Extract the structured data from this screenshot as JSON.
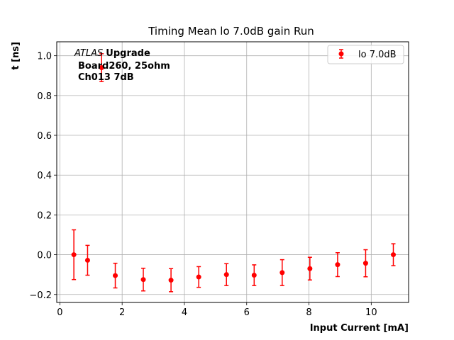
{
  "chart_data": {
    "type": "scatter",
    "title": "Timing Mean lo 7.0dB gain Run",
    "xlabel": "Input Current [mA]",
    "ylabel": "t [ns]",
    "xlim": [
      -0.1,
      11.2
    ],
    "ylim": [
      -0.24,
      1.07
    ],
    "xticks": [
      0,
      2,
      4,
      6,
      8,
      10
    ],
    "yticks": [
      -0.2,
      0.0,
      0.2,
      0.4,
      0.6,
      0.8,
      1.0
    ],
    "xtick_labels": [
      "0",
      "2",
      "4",
      "6",
      "8",
      "10"
    ],
    "ytick_labels": [
      "−0.2",
      "0.0",
      "0.2",
      "0.4",
      "0.6",
      "0.8",
      "1.0"
    ],
    "grid": true,
    "legend": {
      "placement": "top-right",
      "entries": [
        "lo 7.0dB"
      ]
    },
    "annotation": {
      "italic_part": "ATLAS",
      "bold_part": "Upgrade",
      "line2": "Board260, 25ohm",
      "line3": "Ch013 7dB"
    },
    "series": [
      {
        "name": "lo 7.0dB",
        "color": "#ff0000",
        "x": [
          0.45,
          0.89,
          1.34,
          1.78,
          2.68,
          3.57,
          4.46,
          5.35,
          6.24,
          7.14,
          8.03,
          8.92,
          9.82,
          10.71
        ],
        "y": [
          0.0,
          -0.028,
          0.94,
          -0.105,
          -0.125,
          -0.128,
          -0.112,
          -0.1,
          -0.103,
          -0.09,
          -0.07,
          -0.05,
          -0.043,
          0.0
        ],
        "yerr": [
          0.125,
          0.075,
          0.07,
          0.062,
          0.057,
          0.058,
          0.052,
          0.055,
          0.052,
          0.065,
          0.057,
          0.06,
          0.068,
          0.055
        ]
      }
    ]
  }
}
